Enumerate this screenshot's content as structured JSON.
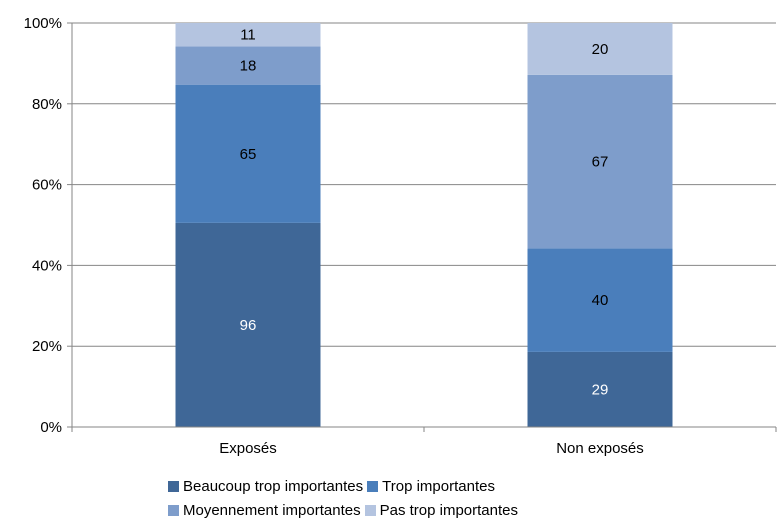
{
  "chart_data": {
    "type": "bar",
    "stacked": "percent",
    "categories": [
      "Exposés",
      "Non exposés"
    ],
    "series": [
      {
        "name": "Beaucoup trop importantes",
        "values": [
          96,
          29
        ],
        "color": "#3F6797"
      },
      {
        "name": "Trop importantes",
        "values": [
          65,
          40
        ],
        "color": "#4A7EBB"
      },
      {
        "name": "Moyennement importantes",
        "values": [
          18,
          67
        ],
        "color": "#7E9DCB"
      },
      {
        "name": "Pas trop importantes",
        "values": [
          11,
          20
        ],
        "color": "#B4C4E0"
      }
    ],
    "data_label_colors": [
      "#ffffff",
      "#000000",
      "#000000",
      "#000000"
    ],
    "yticks": [
      "0%",
      "20%",
      "40%",
      "60%",
      "80%",
      "100%"
    ],
    "ylim": [
      0,
      100
    ],
    "grid": true,
    "legend_position": "bottom",
    "title": "",
    "xlabel": "",
    "ylabel": ""
  }
}
